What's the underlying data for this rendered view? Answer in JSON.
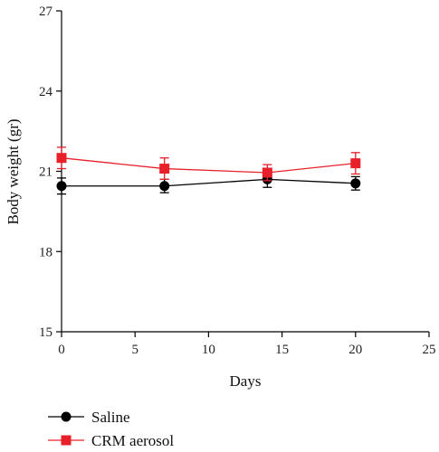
{
  "chart_data": {
    "type": "line",
    "xlabel": "Days",
    "ylabel": "Body weight (gr)",
    "xlim": [
      0,
      25
    ],
    "ylim": [
      15,
      27
    ],
    "xticks": [
      0,
      5,
      10,
      15,
      20,
      25
    ],
    "yticks": [
      15,
      18,
      21,
      24,
      27
    ],
    "legend_position": "bottom-left",
    "series": [
      {
        "name": "Saline",
        "marker": "circle",
        "color": "#000000",
        "x": [
          0,
          7,
          14,
          20
        ],
        "y": [
          20.45,
          20.45,
          20.7,
          20.55
        ],
        "err": [
          0.3,
          0.25,
          0.3,
          0.25
        ]
      },
      {
        "name": "CRM aerosol",
        "marker": "square",
        "color": "#e8202a",
        "x": [
          0,
          7,
          14,
          20
        ],
        "y": [
          21.5,
          21.1,
          20.95,
          21.3
        ],
        "err": [
          0.4,
          0.4,
          0.3,
          0.4
        ]
      }
    ]
  }
}
